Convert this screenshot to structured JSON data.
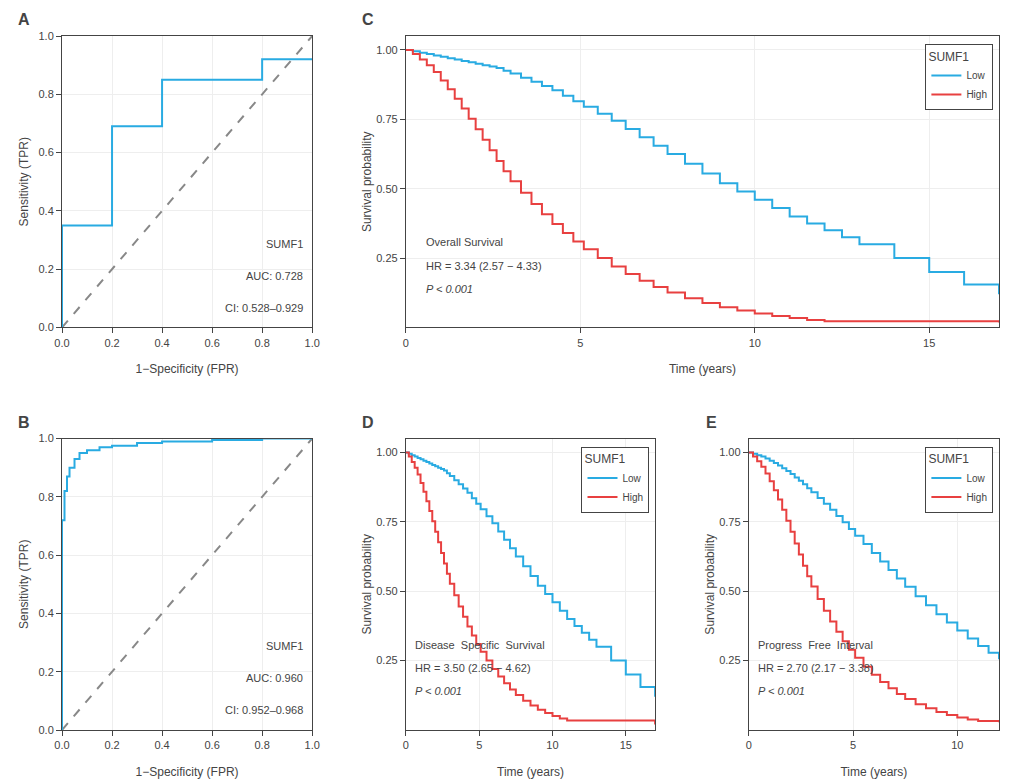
{
  "chart_data": [
    {
      "type": "roc",
      "title": "A",
      "xlabel": "1−Specificity (FPR)",
      "ylabel": "Sensitivity (TPR)",
      "series": [
        {
          "x": [
            0.0,
            1.0
          ],
          "values": [
            0.0,
            1.0
          ],
          "color": "#888888",
          "line_style": "dashed"
        },
        {
          "x": [
            0.0,
            0.0,
            0.2,
            0.2,
            0.4,
            0.4,
            0.8,
            0.8,
            1.0
          ],
          "values": [
            0.0,
            0.35,
            0.35,
            0.69,
            0.69,
            0.85,
            0.85,
            0.92,
            0.92
          ],
          "color": "#29ABE2",
          "line_style": "step"
        }
      ],
      "annotations": [
        "SUMF1",
        "AUC: 0.728",
        "CI: 0.528–0.929"
      ],
      "xlim": [
        0.0,
        1.0
      ],
      "ylim": [
        0.0,
        1.0
      ],
      "xticks": [
        {
          "value": 0,
          "label": "0.0"
        },
        0.2,
        0.4,
        0.6,
        0.8,
        {
          "value": 1,
          "label": "1.0"
        }
      ],
      "yticks": [
        {
          "value": 0,
          "label": "0.0"
        },
        0.2,
        0.4,
        0.6,
        0.8,
        {
          "value": 1,
          "label": "1.0"
        }
      ],
      "grid": true
    },
    {
      "type": "survival",
      "title": "C",
      "xlabel": "Time (years)",
      "ylabel": "Survival probability",
      "series": [
        {
          "name": "Low",
          "color": "#29ABE2",
          "line_style": "step",
          "x": [
            0,
            0.2,
            0.4,
            0.6,
            0.8,
            1.0,
            1.2,
            1.4,
            1.6,
            1.8,
            2.0,
            2.2,
            2.4,
            2.6,
            2.8,
            3.0,
            3.3,
            3.6,
            3.9,
            4.2,
            4.5,
            4.8,
            5.1,
            5.5,
            5.9,
            6.3,
            6.7,
            7.1,
            7.5,
            8.0,
            8.5,
            9.0,
            9.5,
            10.0,
            10.5,
            11.0,
            11.5,
            12.0,
            12.5,
            13.0,
            14.0,
            15.0,
            16.0,
            17.0
          ],
          "values": [
            1.0,
            0.995,
            0.99,
            0.985,
            0.98,
            0.975,
            0.97,
            0.965,
            0.96,
            0.955,
            0.95,
            0.945,
            0.94,
            0.935,
            0.925,
            0.915,
            0.9,
            0.885,
            0.87,
            0.855,
            0.835,
            0.815,
            0.795,
            0.77,
            0.745,
            0.715,
            0.685,
            0.655,
            0.625,
            0.59,
            0.555,
            0.52,
            0.49,
            0.46,
            0.43,
            0.4,
            0.375,
            0.35,
            0.325,
            0.3,
            0.25,
            0.2,
            0.155,
            0.12
          ]
        },
        {
          "name": "High",
          "color": "#E84040",
          "line_style": "step",
          "x": [
            0,
            0.2,
            0.4,
            0.6,
            0.8,
            1.0,
            1.2,
            1.4,
            1.6,
            1.8,
            2.0,
            2.2,
            2.4,
            2.6,
            2.8,
            3.0,
            3.3,
            3.6,
            3.9,
            4.2,
            4.5,
            4.8,
            5.1,
            5.5,
            5.9,
            6.3,
            6.7,
            7.1,
            7.5,
            8.0,
            8.5,
            9.0,
            9.5,
            10.0,
            10.5,
            11.0,
            11.5,
            12.0,
            17.0
          ],
          "values": [
            1.0,
            0.985,
            0.965,
            0.945,
            0.92,
            0.89,
            0.858,
            0.824,
            0.789,
            0.752,
            0.714,
            0.676,
            0.638,
            0.6,
            0.563,
            0.527,
            0.485,
            0.445,
            0.408,
            0.373,
            0.34,
            0.31,
            0.282,
            0.25,
            0.22,
            0.193,
            0.168,
            0.146,
            0.126,
            0.105,
            0.088,
            0.073,
            0.061,
            0.05,
            0.041,
            0.034,
            0.027,
            0.022,
            0.018
          ]
        }
      ],
      "legend": "upper right",
      "legend_title": "SUMF1",
      "annotations": [
        "Overall Survival",
        "HR = 3.34 (2.57 − 4.33)",
        "P < 0.001"
      ],
      "xlim": [
        0,
        17
      ],
      "ylim": [
        0,
        1.05
      ],
      "xticks": [
        0,
        5,
        10,
        15
      ],
      "yticks": [
        0.25,
        {
          "value": 0.5,
          "label": "0.50"
        },
        0.75,
        {
          "value": 1,
          "label": "1.00"
        }
      ],
      "grid": true
    },
    {
      "type": "roc",
      "title": "B",
      "xlabel": "1−Specificity (FPR)",
      "ylabel": "Sensitivity (TPR)",
      "series": [
        {
          "x": [
            0.0,
            1.0
          ],
          "values": [
            0.0,
            1.0
          ],
          "color": "#888888",
          "line_style": "dashed"
        },
        {
          "x": [
            0.0,
            0.0,
            0.01,
            0.02,
            0.03,
            0.05,
            0.07,
            0.1,
            0.15,
            0.2,
            0.3,
            0.4,
            0.6,
            0.8,
            1.0
          ],
          "values": [
            0.0,
            0.72,
            0.82,
            0.87,
            0.9,
            0.93,
            0.95,
            0.96,
            0.97,
            0.975,
            0.985,
            0.99,
            0.995,
            1.0,
            1.0
          ],
          "color": "#29ABE2",
          "line_style": "step"
        }
      ],
      "annotations": [
        "SUMF1",
        "AUC: 0.960",
        "CI: 0.952–0.968"
      ],
      "xlim": [
        0.0,
        1.0
      ],
      "ylim": [
        0.0,
        1.0
      ],
      "xticks": [
        {
          "value": 0,
          "label": "0.0"
        },
        0.2,
        0.4,
        0.6,
        0.8,
        {
          "value": 1,
          "label": "1.0"
        }
      ],
      "yticks": [
        {
          "value": 0,
          "label": "0.0"
        },
        0.2,
        0.4,
        0.6,
        0.8,
        {
          "value": 1,
          "label": "1.0"
        }
      ],
      "grid": true
    },
    {
      "type": "survival",
      "title": "D",
      "xlabel": "Time (years)",
      "ylabel": "Survival probability",
      "series": [
        {
          "name": "Low",
          "color": "#29ABE2",
          "line_style": "step",
          "x": [
            0,
            0.2,
            0.4,
            0.6,
            0.8,
            1.0,
            1.2,
            1.4,
            1.6,
            1.8,
            2.0,
            2.2,
            2.4,
            2.6,
            2.8,
            3.0,
            3.3,
            3.6,
            3.9,
            4.2,
            4.5,
            4.8,
            5.1,
            5.5,
            5.9,
            6.3,
            6.7,
            7.1,
            7.5,
            8.0,
            8.5,
            9.0,
            9.5,
            10.0,
            10.5,
            11.0,
            11.5,
            12.0,
            12.5,
            13.0,
            14.0,
            15.0,
            16.0,
            17.0
          ],
          "values": [
            1.0,
            0.995,
            0.99,
            0.985,
            0.98,
            0.975,
            0.97,
            0.965,
            0.96,
            0.955,
            0.95,
            0.945,
            0.94,
            0.935,
            0.925,
            0.915,
            0.9,
            0.885,
            0.87,
            0.855,
            0.835,
            0.815,
            0.795,
            0.77,
            0.745,
            0.715,
            0.685,
            0.655,
            0.625,
            0.59,
            0.555,
            0.52,
            0.49,
            0.46,
            0.43,
            0.4,
            0.375,
            0.35,
            0.325,
            0.3,
            0.25,
            0.2,
            0.155,
            0.12
          ]
        },
        {
          "name": "High",
          "color": "#E84040",
          "line_style": "step",
          "x": [
            0,
            0.2,
            0.4,
            0.6,
            0.8,
            1.0,
            1.2,
            1.4,
            1.6,
            1.8,
            2.0,
            2.2,
            2.4,
            2.6,
            2.8,
            3.0,
            3.3,
            3.6,
            3.9,
            4.2,
            4.5,
            4.8,
            5.1,
            5.5,
            5.9,
            6.3,
            6.7,
            7.1,
            7.5,
            8.0,
            8.5,
            9.0,
            9.5,
            10.0,
            10.5,
            11.0,
            17.0
          ],
          "values": [
            1.0,
            0.985,
            0.965,
            0.945,
            0.92,
            0.89,
            0.858,
            0.824,
            0.789,
            0.752,
            0.714,
            0.676,
            0.638,
            0.6,
            0.563,
            0.527,
            0.485,
            0.445,
            0.408,
            0.373,
            0.34,
            0.31,
            0.282,
            0.25,
            0.22,
            0.193,
            0.168,
            0.146,
            0.126,
            0.105,
            0.088,
            0.073,
            0.061,
            0.05,
            0.041,
            0.034,
            0.02
          ]
        }
      ],
      "legend": "upper right",
      "legend_title": "SUMF1",
      "annotations": [
        "Disease  Specific  Survival",
        "HR = 3.50 (2.65 − 4.62)",
        "P < 0.001"
      ],
      "xlim": [
        0,
        17
      ],
      "ylim": [
        0,
        1.05
      ],
      "xticks": [
        0,
        5,
        10,
        15
      ],
      "yticks": [
        0.25,
        {
          "value": 0.5,
          "label": "0.50"
        },
        0.75,
        {
          "value": 1,
          "label": "1.00"
        }
      ],
      "grid": true
    },
    {
      "type": "survival",
      "title": "E",
      "xlabel": "Time (years)",
      "ylabel": "Survival probability",
      "series": [
        {
          "name": "Low",
          "color": "#29ABE2",
          "line_style": "step",
          "x": [
            0,
            0.2,
            0.4,
            0.6,
            0.8,
            1.0,
            1.2,
            1.4,
            1.6,
            1.8,
            2.0,
            2.2,
            2.4,
            2.6,
            2.8,
            3.0,
            3.3,
            3.6,
            3.9,
            4.2,
            4.5,
            4.8,
            5.1,
            5.5,
            5.9,
            6.3,
            6.7,
            7.1,
            7.5,
            8.0,
            8.5,
            9.0,
            9.5,
            10.0,
            10.5,
            11.0,
            11.5,
            12.0
          ],
          "values": [
            1.0,
            0.995,
            0.99,
            0.985,
            0.978,
            0.97,
            0.962,
            0.953,
            0.943,
            0.933,
            0.922,
            0.91,
            0.898,
            0.885,
            0.871,
            0.856,
            0.836,
            0.815,
            0.793,
            0.771,
            0.748,
            0.724,
            0.7,
            0.67,
            0.638,
            0.607,
            0.576,
            0.546,
            0.516,
            0.482,
            0.449,
            0.417,
            0.387,
            0.358,
            0.33,
            0.303,
            0.278,
            0.255
          ]
        },
        {
          "name": "High",
          "color": "#E84040",
          "line_style": "step",
          "x": [
            0,
            0.2,
            0.4,
            0.6,
            0.8,
            1.0,
            1.2,
            1.4,
            1.6,
            1.8,
            2.0,
            2.2,
            2.4,
            2.6,
            2.8,
            3.0,
            3.3,
            3.6,
            3.9,
            4.2,
            4.5,
            4.8,
            5.1,
            5.5,
            5.9,
            6.3,
            6.7,
            7.1,
            7.5,
            8.0,
            8.5,
            9.0,
            9.5,
            10.0,
            10.5,
            11.0,
            12.0
          ],
          "values": [
            1.0,
            0.985,
            0.968,
            0.948,
            0.924,
            0.896,
            0.864,
            0.83,
            0.793,
            0.754,
            0.714,
            0.672,
            0.632,
            0.592,
            0.554,
            0.517,
            0.472,
            0.43,
            0.391,
            0.354,
            0.32,
            0.289,
            0.26,
            0.228,
            0.199,
            0.173,
            0.15,
            0.13,
            0.112,
            0.093,
            0.078,
            0.065,
            0.054,
            0.045,
            0.038,
            0.032,
            0.028
          ]
        }
      ],
      "legend": "upper right",
      "legend_title": "SUMF1",
      "annotations": [
        "Progress  Free  Interval",
        "HR = 2.70 (2.17 − 3.38)",
        "P < 0.001"
      ],
      "xlim": [
        0,
        12
      ],
      "ylim": [
        0,
        1.05
      ],
      "xticks": [
        0,
        5,
        10
      ],
      "yticks": [
        0.25,
        {
          "value": 0.5,
          "label": "0.50"
        },
        0.75,
        {
          "value": 1,
          "label": "1.00"
        }
      ],
      "grid": true
    }
  ]
}
